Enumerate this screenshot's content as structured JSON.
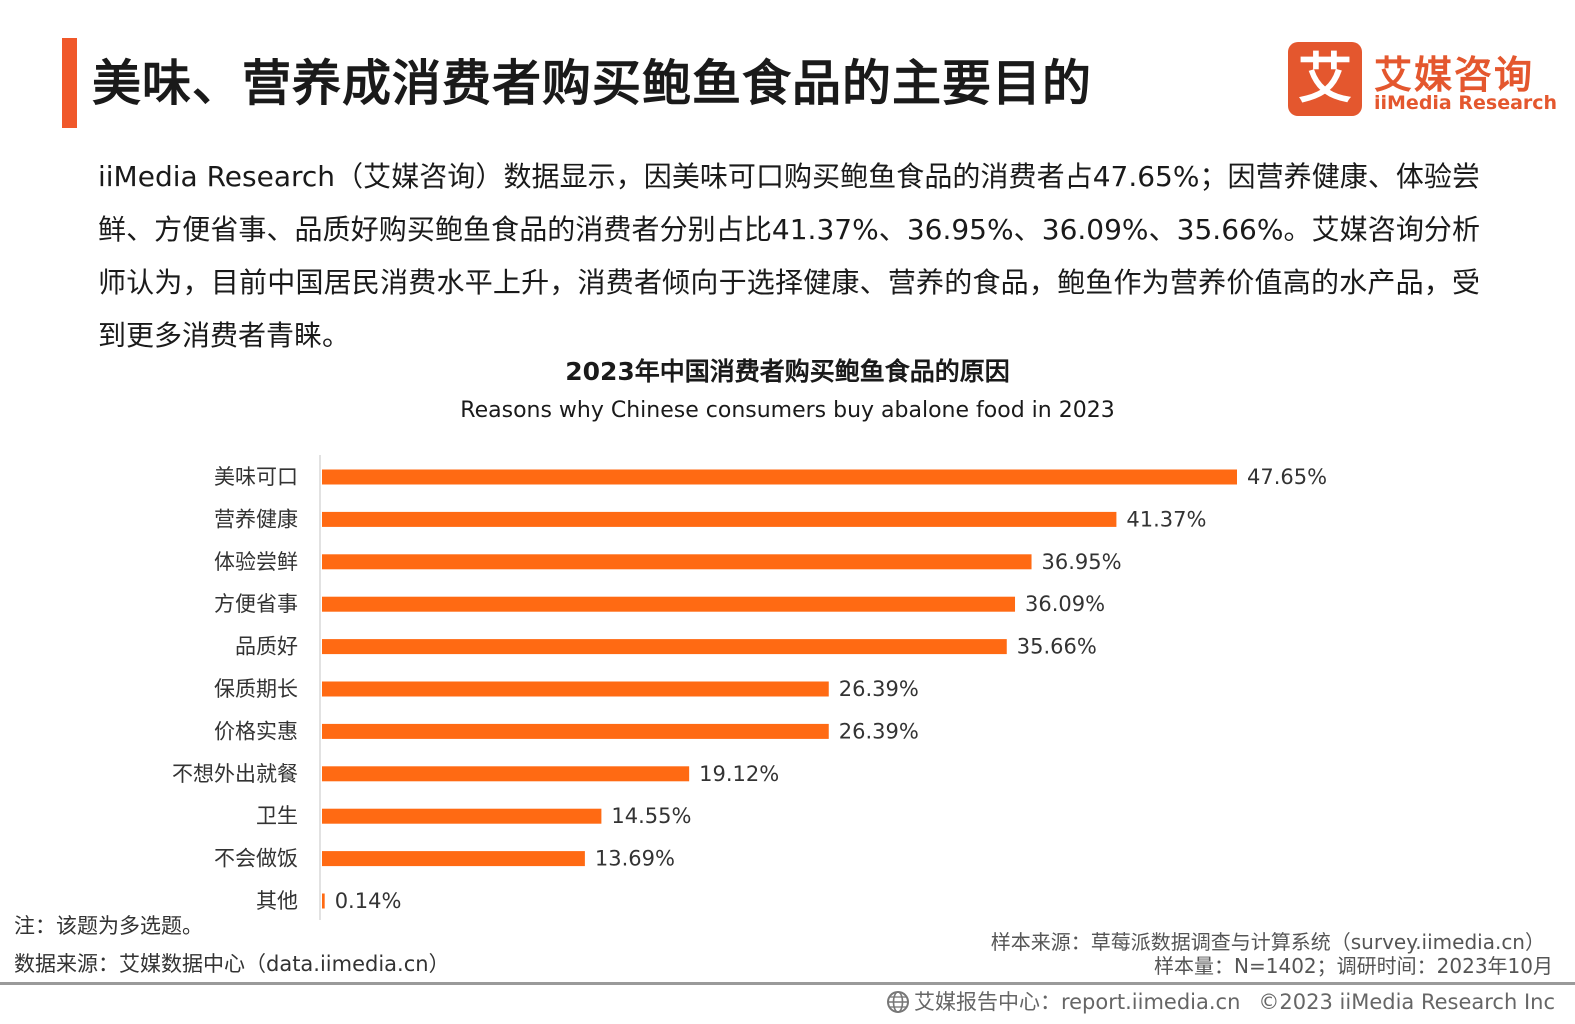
{
  "header": {
    "title": "美味、营养成消费者购买鲍鱼食品的主要目的",
    "logo_mark": "艾",
    "logo_cn": "艾媒咨询",
    "logo_en": "iiMedia Research",
    "accent_color": "#f0582a"
  },
  "intro": "iiMedia Research（艾媒咨询）数据显示，因美味可口购买鲍鱼食品的消费者占47.65%；因营养健康、体验尝鲜、方便省事、品质好购买鲍鱼食品的消费者分别占比41.37%、36.95%、36.09%、35.66%。艾媒咨询分析师认为，目前中国居民消费水平上升，消费者倾向于选择健康、营养的食品，鲍鱼作为营养价值高的水产品，受到更多消费者青睐。",
  "chart_data": {
    "type": "bar",
    "orientation": "horizontal",
    "title": "2023年中国消费者购买鲍鱼食品的原因",
    "subtitle": "Reasons why Chinese consumers buy abalone food in 2023",
    "categories": [
      "美味可口",
      "营养健康",
      "体验尝鲜",
      "方便省事",
      "品质好",
      "保质期长",
      "价格实惠",
      "不想外出就餐",
      "卫生",
      "不会做饭",
      "其他"
    ],
    "values": [
      47.65,
      41.37,
      36.95,
      36.09,
      35.66,
      26.39,
      26.39,
      19.12,
      14.55,
      13.69,
      0.14
    ],
    "value_labels": [
      "47.65%",
      "41.37%",
      "36.95%",
      "36.09%",
      "35.66%",
      "26.39%",
      "26.39%",
      "19.12%",
      "14.55%",
      "13.69%",
      "0.14%"
    ],
    "unit": "%",
    "bar_color": "#ff6a13",
    "grid": false,
    "legend": "none"
  },
  "footer": {
    "note": "注：该题为多选题。",
    "data_source": "数据来源：艾媒数据中心（data.iimedia.cn）",
    "sample_source": "样本来源：草莓派数据调查与计算系统（survey.iimedia.cn）",
    "sample_size": "样本量：N=1402；调研时间：2023年10月",
    "report_center": "艾媒报告中心：report.iimedia.cn",
    "copyright": "©2023  iiMedia Research  Inc",
    "globe_icon": "globe-icon"
  }
}
